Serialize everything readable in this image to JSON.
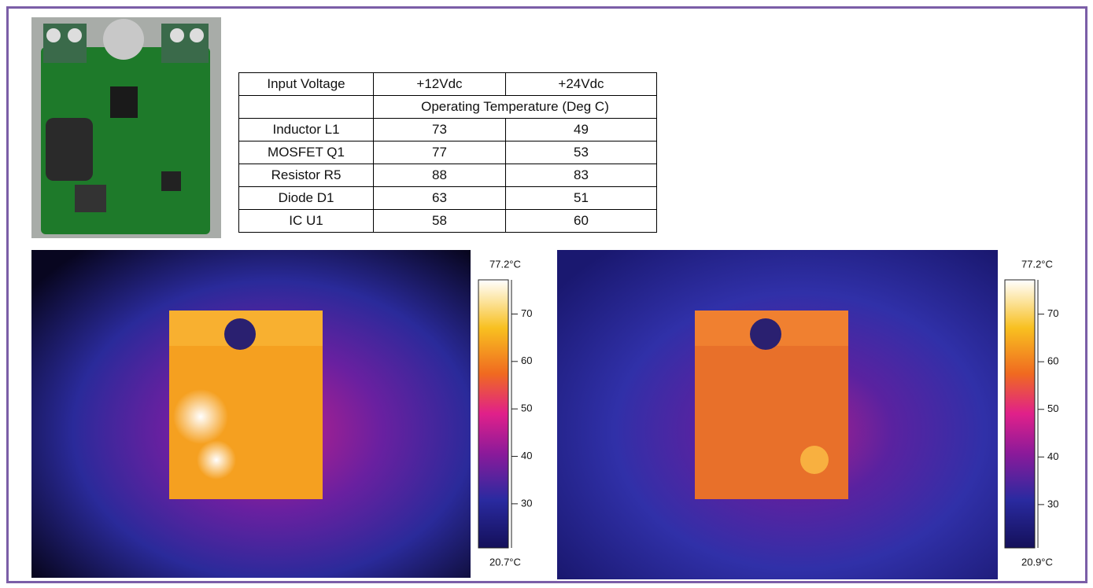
{
  "table": {
    "header": [
      "Input Voltage",
      "+12Vdc",
      "+24Vdc"
    ],
    "subheader": "Operating Temperature (Deg C)",
    "rows": [
      [
        "Inductor L1",
        73,
        49
      ],
      [
        "MOSFET Q1",
        77,
        53
      ],
      [
        "Resistor R5",
        88,
        83
      ],
      [
        "Diode D1",
        63,
        51
      ],
      [
        "IC U1",
        58,
        60
      ]
    ]
  },
  "thermal_images": [
    {
      "max": {
        "value": 77.2,
        "label": "77.2°C"
      },
      "min": {
        "value": 20.7,
        "label": "20.7°C"
      },
      "ticks": [
        70,
        60,
        50,
        40,
        30
      ]
    },
    {
      "max": {
        "value": 77.2,
        "label": "77.2°C"
      },
      "min": {
        "value": 20.9,
        "label": "20.9°C"
      },
      "ticks": [
        70,
        60,
        50,
        40,
        30
      ]
    }
  ]
}
